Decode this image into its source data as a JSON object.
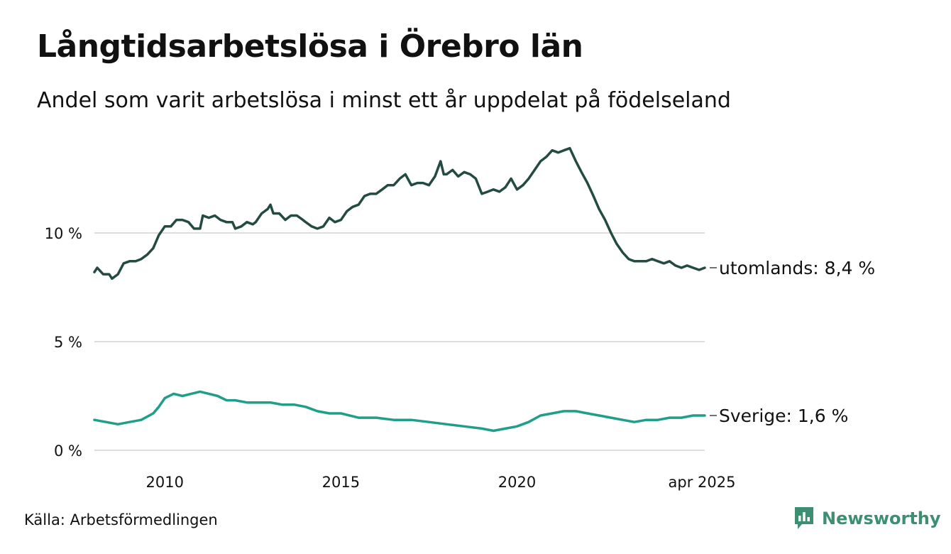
{
  "title": "Långtidsarbetslösa i Örebro län",
  "subtitle": "Andel som varit arbetslösa i minst ett år uppdelat på födelseland",
  "source": "Källa: Arbetsförmedlingen",
  "brand": {
    "name": "Newsworthy",
    "icon": "newsworthy-logo-icon",
    "color": "#3d8f72"
  },
  "chart_data": {
    "type": "line",
    "x_range": [
      2008.0,
      2025.33
    ],
    "ylim": [
      0,
      14
    ],
    "yticks": [
      {
        "value": 0,
        "label": "0 %"
      },
      {
        "value": 5,
        "label": "5 %"
      },
      {
        "value": 10,
        "label": "10 %"
      }
    ],
    "xticks": [
      {
        "value": 2010,
        "label": "2010"
      },
      {
        "value": 2015,
        "label": "2015"
      },
      {
        "value": 2020,
        "label": "2020"
      },
      {
        "value": 2025.25,
        "label": "apr 2025"
      }
    ],
    "grid": true,
    "series": [
      {
        "name": "utomlands",
        "end_label": "utomlands: 8,4 %",
        "color": "#234b42",
        "points": [
          [
            2008.0,
            8.2
          ],
          [
            2008.08,
            8.4
          ],
          [
            2008.25,
            8.1
          ],
          [
            2008.42,
            8.1
          ],
          [
            2008.5,
            7.9
          ],
          [
            2008.67,
            8.1
          ],
          [
            2008.83,
            8.6
          ],
          [
            2009.0,
            8.7
          ],
          [
            2009.17,
            8.7
          ],
          [
            2009.33,
            8.8
          ],
          [
            2009.5,
            9.0
          ],
          [
            2009.67,
            9.3
          ],
          [
            2009.83,
            9.9
          ],
          [
            2010.0,
            10.3
          ],
          [
            2010.17,
            10.3
          ],
          [
            2010.33,
            10.6
          ],
          [
            2010.5,
            10.6
          ],
          [
            2010.67,
            10.5
          ],
          [
            2010.83,
            10.2
          ],
          [
            2011.0,
            10.2
          ],
          [
            2011.08,
            10.8
          ],
          [
            2011.25,
            10.7
          ],
          [
            2011.42,
            10.8
          ],
          [
            2011.58,
            10.6
          ],
          [
            2011.75,
            10.5
          ],
          [
            2011.92,
            10.5
          ],
          [
            2012.0,
            10.2
          ],
          [
            2012.17,
            10.3
          ],
          [
            2012.33,
            10.5
          ],
          [
            2012.5,
            10.4
          ],
          [
            2012.58,
            10.5
          ],
          [
            2012.75,
            10.9
          ],
          [
            2012.92,
            11.1
          ],
          [
            2013.0,
            11.3
          ],
          [
            2013.08,
            10.9
          ],
          [
            2013.25,
            10.9
          ],
          [
            2013.42,
            10.6
          ],
          [
            2013.58,
            10.8
          ],
          [
            2013.75,
            10.8
          ],
          [
            2013.92,
            10.6
          ],
          [
            2014.0,
            10.5
          ],
          [
            2014.17,
            10.3
          ],
          [
            2014.33,
            10.2
          ],
          [
            2014.5,
            10.3
          ],
          [
            2014.67,
            10.7
          ],
          [
            2014.83,
            10.5
          ],
          [
            2015.0,
            10.6
          ],
          [
            2015.17,
            11.0
          ],
          [
            2015.33,
            11.2
          ],
          [
            2015.5,
            11.3
          ],
          [
            2015.67,
            11.7
          ],
          [
            2015.83,
            11.8
          ],
          [
            2016.0,
            11.8
          ],
          [
            2016.17,
            12.0
          ],
          [
            2016.33,
            12.2
          ],
          [
            2016.5,
            12.2
          ],
          [
            2016.67,
            12.5
          ],
          [
            2016.83,
            12.7
          ],
          [
            2017.0,
            12.2
          ],
          [
            2017.17,
            12.3
          ],
          [
            2017.33,
            12.3
          ],
          [
            2017.5,
            12.2
          ],
          [
            2017.67,
            12.6
          ],
          [
            2017.83,
            13.3
          ],
          [
            2017.92,
            12.7
          ],
          [
            2018.0,
            12.7
          ],
          [
            2018.17,
            12.9
          ],
          [
            2018.33,
            12.6
          ],
          [
            2018.5,
            12.8
          ],
          [
            2018.67,
            12.7
          ],
          [
            2018.83,
            12.5
          ],
          [
            2019.0,
            11.8
          ],
          [
            2019.17,
            11.9
          ],
          [
            2019.33,
            12.0
          ],
          [
            2019.5,
            11.9
          ],
          [
            2019.67,
            12.1
          ],
          [
            2019.83,
            12.5
          ],
          [
            2020.0,
            12.0
          ],
          [
            2020.17,
            12.2
          ],
          [
            2020.33,
            12.5
          ],
          [
            2020.5,
            12.9
          ],
          [
            2020.67,
            13.3
          ],
          [
            2020.83,
            13.5
          ],
          [
            2021.0,
            13.8
          ],
          [
            2021.17,
            13.7
          ],
          [
            2021.33,
            13.8
          ],
          [
            2021.5,
            13.9
          ],
          [
            2021.67,
            13.3
          ],
          [
            2021.83,
            12.8
          ],
          [
            2022.0,
            12.3
          ],
          [
            2022.17,
            11.7
          ],
          [
            2022.33,
            11.1
          ],
          [
            2022.5,
            10.6
          ],
          [
            2022.67,
            10.0
          ],
          [
            2022.83,
            9.5
          ],
          [
            2023.0,
            9.1
          ],
          [
            2023.17,
            8.8
          ],
          [
            2023.33,
            8.7
          ],
          [
            2023.5,
            8.7
          ],
          [
            2023.67,
            8.7
          ],
          [
            2023.83,
            8.8
          ],
          [
            2024.0,
            8.7
          ],
          [
            2024.17,
            8.6
          ],
          [
            2024.33,
            8.7
          ],
          [
            2024.5,
            8.5
          ],
          [
            2024.67,
            8.4
          ],
          [
            2024.83,
            8.5
          ],
          [
            2025.0,
            8.4
          ],
          [
            2025.17,
            8.3
          ],
          [
            2025.33,
            8.4
          ]
        ]
      },
      {
        "name": "Sverige",
        "end_label": "Sverige: 1,6 %",
        "color": "#1f9e8a",
        "points": [
          [
            2008.0,
            1.4
          ],
          [
            2008.33,
            1.3
          ],
          [
            2008.67,
            1.2
          ],
          [
            2009.0,
            1.3
          ],
          [
            2009.33,
            1.4
          ],
          [
            2009.67,
            1.7
          ],
          [
            2009.83,
            2.0
          ],
          [
            2010.0,
            2.4
          ],
          [
            2010.25,
            2.6
          ],
          [
            2010.5,
            2.5
          ],
          [
            2010.75,
            2.6
          ],
          [
            2011.0,
            2.7
          ],
          [
            2011.25,
            2.6
          ],
          [
            2011.5,
            2.5
          ],
          [
            2011.75,
            2.3
          ],
          [
            2012.0,
            2.3
          ],
          [
            2012.33,
            2.2
          ],
          [
            2012.67,
            2.2
          ],
          [
            2013.0,
            2.2
          ],
          [
            2013.33,
            2.1
          ],
          [
            2013.67,
            2.1
          ],
          [
            2014.0,
            2.0
          ],
          [
            2014.33,
            1.8
          ],
          [
            2014.67,
            1.7
          ],
          [
            2015.0,
            1.7
          ],
          [
            2015.5,
            1.5
          ],
          [
            2016.0,
            1.5
          ],
          [
            2016.5,
            1.4
          ],
          [
            2017.0,
            1.4
          ],
          [
            2017.5,
            1.3
          ],
          [
            2018.0,
            1.2
          ],
          [
            2018.5,
            1.1
          ],
          [
            2019.0,
            1.0
          ],
          [
            2019.33,
            0.9
          ],
          [
            2019.67,
            1.0
          ],
          [
            2020.0,
            1.1
          ],
          [
            2020.33,
            1.3
          ],
          [
            2020.67,
            1.6
          ],
          [
            2021.0,
            1.7
          ],
          [
            2021.33,
            1.8
          ],
          [
            2021.67,
            1.8
          ],
          [
            2022.0,
            1.7
          ],
          [
            2022.33,
            1.6
          ],
          [
            2022.67,
            1.5
          ],
          [
            2023.0,
            1.4
          ],
          [
            2023.33,
            1.3
          ],
          [
            2023.67,
            1.4
          ],
          [
            2024.0,
            1.4
          ],
          [
            2024.33,
            1.5
          ],
          [
            2024.67,
            1.5
          ],
          [
            2025.0,
            1.6
          ],
          [
            2025.33,
            1.6
          ]
        ]
      }
    ]
  }
}
